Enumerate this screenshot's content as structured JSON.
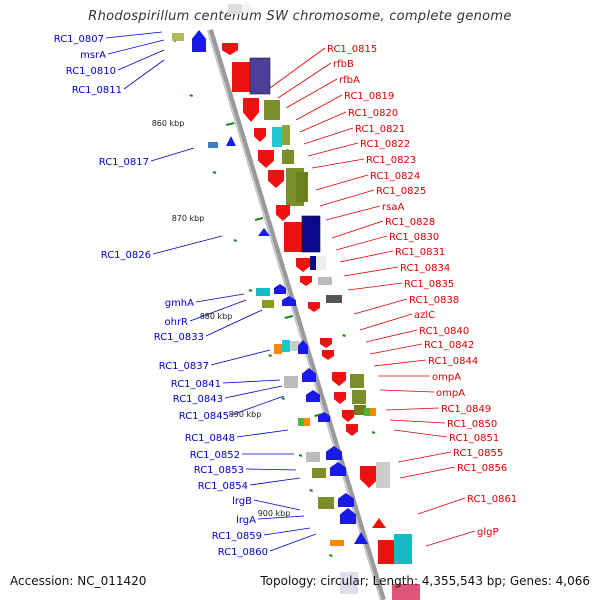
{
  "title": "Rhodospirillum centenum SW chromosome, complete genome",
  "footer": {
    "accession": "Accession: NC_011420",
    "topology": "Topology: circular; Length: 4,355,543 bp; Genes: 4,066"
  },
  "colors": {
    "left_label": "#0000cc",
    "right_label": "#dd0000",
    "backbone": "#8a8a8a",
    "tick": "#1a8a1a"
  },
  "ticks": [
    "860 kbp",
    "870 kbp",
    "880 kbp",
    "890 kbp",
    "900 kbp"
  ],
  "left_genes": [
    "RC1_0807",
    "msrA",
    "RC1_0810",
    "RC1_0811",
    "RC1_0817",
    "RC1_0826",
    "gmhA",
    "ohrR",
    "RC1_0833",
    "RC1_0837",
    "RC1_0841",
    "RC1_0843",
    "RC1_0845",
    "RC1_0848",
    "RC1_0852",
    "RC1_0853",
    "RC1_0854",
    "lrgB",
    "lrgA",
    "RC1_0859",
    "RC1_0860"
  ],
  "right_genes": [
    "RC1_0815",
    "rfbB",
    "rfbA",
    "RC1_0819",
    "RC1_0820",
    "RC1_0821",
    "RC1_0822",
    "RC1_0823",
    "RC1_0824",
    "RC1_0825",
    "rsaA",
    "RC1_0828",
    "RC1_0830",
    "RC1_0831",
    "RC1_0834",
    "RC1_0835",
    "RC1_0838",
    "azlC",
    "RC1_0840",
    "RC1_0842",
    "RC1_0844",
    "ompA",
    "ompA",
    "RC1_0849",
    "RC1_0850",
    "RC1_0851",
    "RC1_0855",
    "RC1_0856",
    "RC1_0861",
    "glgP"
  ]
}
